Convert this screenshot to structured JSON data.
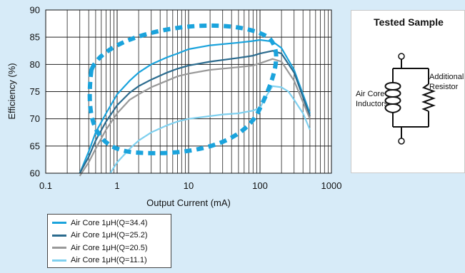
{
  "chart_data": {
    "type": "line",
    "title": "",
    "xlabel": "Output Current (mA)",
    "ylabel": "Efficiency (%)",
    "xscale": "log",
    "xlim": [
      0.1,
      1000
    ],
    "ylim": [
      60,
      90
    ],
    "xticks": [
      0.1,
      1,
      10,
      100,
      1000
    ],
    "xtick_labels": [
      "0.1",
      "1",
      "10",
      "100",
      "1000"
    ],
    "yticks": [
      60,
      65,
      70,
      75,
      80,
      85,
      90
    ],
    "ytick_labels": [
      "60",
      "65",
      "70",
      "75",
      "80",
      "85",
      "90"
    ],
    "grid": true,
    "legend_position": "bottom-left",
    "series": [
      {
        "name": "Air Core 1μH(Q=34.4)",
        "color": "#1aa3dc",
        "x": [
          0.3,
          0.4,
          0.5,
          0.7,
          1,
          1.5,
          2,
          3,
          5,
          7,
          10,
          20,
          50,
          80,
          100,
          150,
          200,
          300,
          500
        ],
        "y": [
          60,
          64,
          67.5,
          71,
          74.5,
          77,
          78.5,
          80,
          81.3,
          82,
          82.8,
          83.5,
          84,
          84.3,
          84.5,
          84.2,
          83,
          79,
          71
        ]
      },
      {
        "name": "Air Core 1μH(Q=25.2)",
        "color": "#2b6b8e",
        "x": [
          0.3,
          0.4,
          0.5,
          0.7,
          1,
          1.5,
          2,
          3,
          5,
          7,
          10,
          20,
          50,
          80,
          100,
          150,
          200,
          300,
          500
        ],
        "y": [
          60,
          63,
          66,
          69.5,
          72.5,
          74.8,
          76,
          77.2,
          78.5,
          79.2,
          79.8,
          80.5,
          81.2,
          81.6,
          82,
          82.5,
          82,
          78.5,
          70.5
        ]
      },
      {
        "name": "Air Core 1μH(Q=20.5)",
        "color": "#999999",
        "x": [
          0.3,
          0.4,
          0.5,
          0.7,
          1,
          1.5,
          2,
          3,
          5,
          7,
          10,
          20,
          50,
          80,
          100,
          150,
          200,
          300,
          500
        ],
        "y": [
          59.5,
          62,
          64.5,
          68,
          71,
          73.5,
          74.5,
          75.8,
          77,
          77.8,
          78.3,
          79,
          79.5,
          79.8,
          80.2,
          81,
          80.5,
          77,
          70
        ]
      },
      {
        "name": "Air Core 1μH(Q=11.1)",
        "color": "#7fd0ef",
        "x": [
          0.8,
          1,
          1.5,
          2,
          3,
          5,
          7,
          10,
          20,
          30,
          50,
          80,
          100,
          120,
          150,
          200,
          250,
          300,
          400,
          500
        ],
        "y": [
          60,
          62,
          64.5,
          66,
          67.5,
          68.8,
          69.5,
          70,
          70.5,
          70.8,
          71,
          71.5,
          72,
          74,
          76,
          75.8,
          75,
          73.5,
          71,
          68
        ]
      }
    ]
  },
  "sample": {
    "title": "Tested Sample",
    "inductor_label": "Air Core Inductors",
    "resistor_label": "Additional Resistor"
  }
}
